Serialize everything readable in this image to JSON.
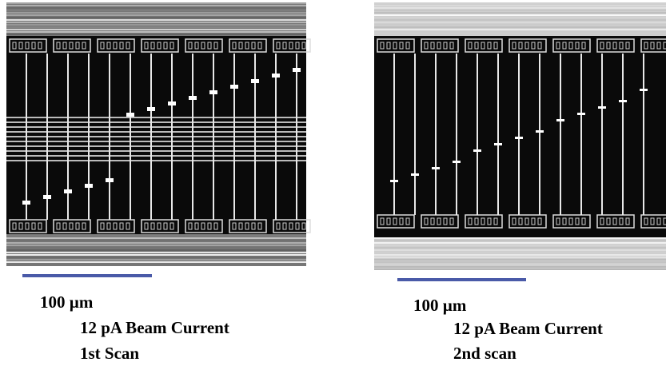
{
  "panels": [
    {
      "scale": "100 µm",
      "beam": "12 pA Beam Current",
      "scan": "1st Scan"
    },
    {
      "scale": "100 µm",
      "beam": "12 pA Beam Current",
      "scan": "2nd scan"
    }
  ]
}
